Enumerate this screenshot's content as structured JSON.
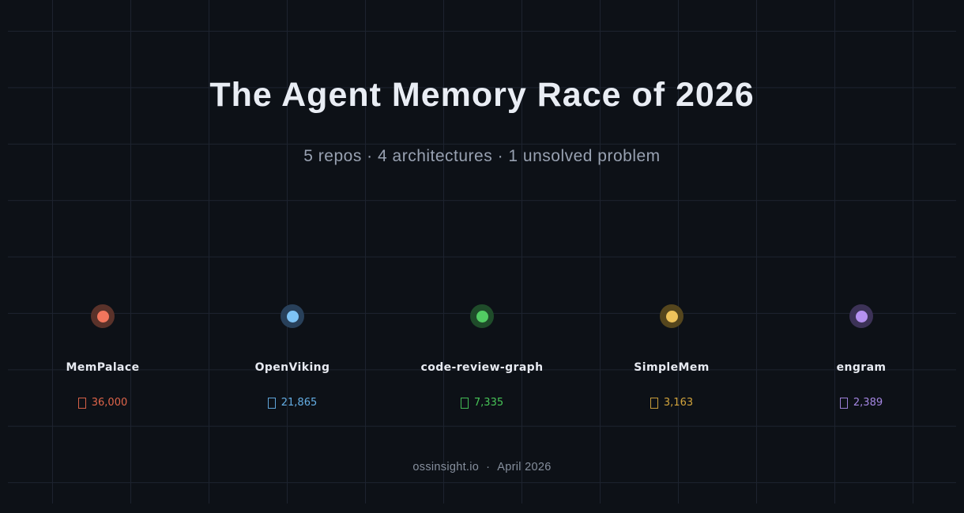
{
  "title": "The Agent Memory Race of 2026",
  "subtitle": "5 repos · 4 architectures · 1 unsolved problem",
  "footer": {
    "source": "ossinsight.io",
    "separator": "·",
    "date": "April 2026"
  },
  "theme": {
    "background": "#0d1117",
    "grid_line": "#1d232f",
    "title_color": "#e9edf4",
    "subtitle_color": "#98a1b1",
    "footer_color": "#868f9d",
    "repo_name_color": "#e7eaf1"
  },
  "repos": [
    {
      "name": "MemPalace",
      "stars": "36,000",
      "dot_color": "#f2765d",
      "ring_color": "#5a322a",
      "count_color": "#e0654a"
    },
    {
      "name": "OpenViking",
      "stars": "21,865",
      "dot_color": "#7ec3f5",
      "ring_color": "#28405a",
      "count_color": "#64aee4"
    },
    {
      "name": "code-review-graph",
      "stars": "7,335",
      "dot_color": "#52cc63",
      "ring_color": "#1f4c2a",
      "count_color": "#47c457"
    },
    {
      "name": "SimpleMem",
      "stars": "3,163",
      "dot_color": "#eec35b",
      "ring_color": "#55461d",
      "count_color": "#d2a43c"
    },
    {
      "name": "engram",
      "stars": "2,389",
      "dot_color": "#b591f0",
      "ring_color": "#3c3257",
      "count_color": "#a486e2"
    }
  ],
  "chart_data": {
    "type": "scatter",
    "title": "The Agent Memory Race of 2026",
    "subtitle": "5 repos · 4 architectures · 1 unsolved problem",
    "categories": [
      "MemPalace",
      "OpenViking",
      "code-review-graph",
      "SimpleMem",
      "engram"
    ],
    "values": [
      36000,
      21865,
      7335,
      3163,
      2389
    ],
    "value_labels": [
      "36,000",
      "21,865",
      "7,335",
      "3,163",
      "2,389"
    ],
    "value_unit": "stars",
    "colors": [
      "#f2765d",
      "#7ec3f5",
      "#52cc63",
      "#eec35b",
      "#b591f0"
    ],
    "legend": null,
    "grid": true,
    "source": "ossinsight.io",
    "date": "April 2026"
  }
}
